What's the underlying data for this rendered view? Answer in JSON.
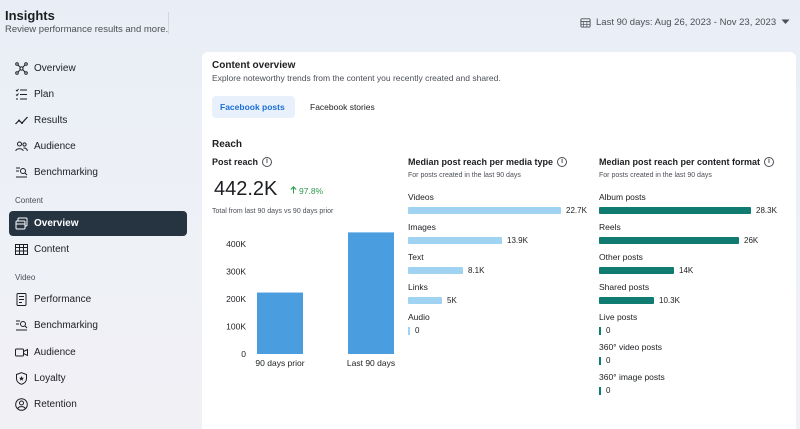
{
  "header": {
    "title": "Insights",
    "subtitle": "Review performance results and more.",
    "date_range": "Last 90 days: Aug 26, 2023 - Nov 23, 2023"
  },
  "sidebar": {
    "items": [
      {
        "label": "Overview",
        "icon": "overview-graph-icon"
      },
      {
        "label": "Plan",
        "icon": "checklist-icon"
      },
      {
        "label": "Results",
        "icon": "trend-line-icon"
      },
      {
        "label": "Audience",
        "icon": "people-icon"
      },
      {
        "label": "Benchmarking",
        "icon": "benchmark-search-icon"
      }
    ],
    "content_section": "Content",
    "content_items": [
      {
        "label": "Overview",
        "icon": "cards-icon",
        "active": true
      },
      {
        "label": "Content",
        "icon": "grid-table-icon"
      }
    ],
    "video_section": "Video",
    "video_items": [
      {
        "label": "Performance",
        "icon": "document-icon"
      },
      {
        "label": "Benchmarking",
        "icon": "benchmark-search-icon"
      },
      {
        "label": "Audience",
        "icon": "video-camera-icon"
      },
      {
        "label": "Loyalty",
        "icon": "shield-icon"
      },
      {
        "label": "Retention",
        "icon": "user-circle-icon"
      }
    ]
  },
  "content_overview": {
    "title": "Content overview",
    "description": "Explore noteworthy trends from the content you recently created and shared.",
    "tabs": [
      {
        "label": "Facebook posts",
        "active": true
      },
      {
        "label": "Facebook stories",
        "active": false
      }
    ]
  },
  "reach": {
    "heading": "Reach",
    "post_reach": {
      "title": "Post reach",
      "value": "442.2K",
      "change": "97.8%",
      "note": "Total from last 90 days vs 90 days prior"
    },
    "media_type": {
      "title": "Median post reach per media type",
      "subtitle": "For posts created in the last 90 days",
      "color": "#9fd3f1",
      "items": [
        {
          "label": "Videos",
          "display": "22.7K",
          "value": 22700
        },
        {
          "label": "Images",
          "display": "13.9K",
          "value": 13900
        },
        {
          "label": "Text",
          "display": "8.1K",
          "value": 8100
        },
        {
          "label": "Links",
          "display": "5K",
          "value": 5000
        },
        {
          "label": "Audio",
          "display": "0",
          "value": 0
        }
      ]
    },
    "content_format": {
      "title": "Median post reach per content format",
      "subtitle": "For posts created in the last 90 days",
      "color": "#0f7b71",
      "items": [
        {
          "label": "Album posts",
          "display": "28.3K",
          "value": 28300
        },
        {
          "label": "Reels",
          "display": "26K",
          "value": 26000
        },
        {
          "label": "Other posts",
          "display": "14K",
          "value": 14000
        },
        {
          "label": "Shared posts",
          "display": "10.3K",
          "value": 10300
        },
        {
          "label": "Live posts",
          "display": "0",
          "value": 0
        },
        {
          "label": "360° video posts",
          "display": "0",
          "value": 0
        },
        {
          "label": "360° image posts",
          "display": "0",
          "value": 0
        }
      ]
    }
  },
  "chart_data": {
    "type": "bar",
    "categories": [
      "90 days prior",
      "Last 90 days"
    ],
    "values": [
      223500,
      442200
    ],
    "ylim": [
      0,
      400000
    ],
    "yticks": [
      0,
      100000,
      200000,
      300000,
      400000
    ],
    "ytick_labels": [
      "0",
      "100K",
      "200K",
      "300K",
      "400K"
    ],
    "grid": false,
    "bar_color": "#4a9ee0"
  }
}
